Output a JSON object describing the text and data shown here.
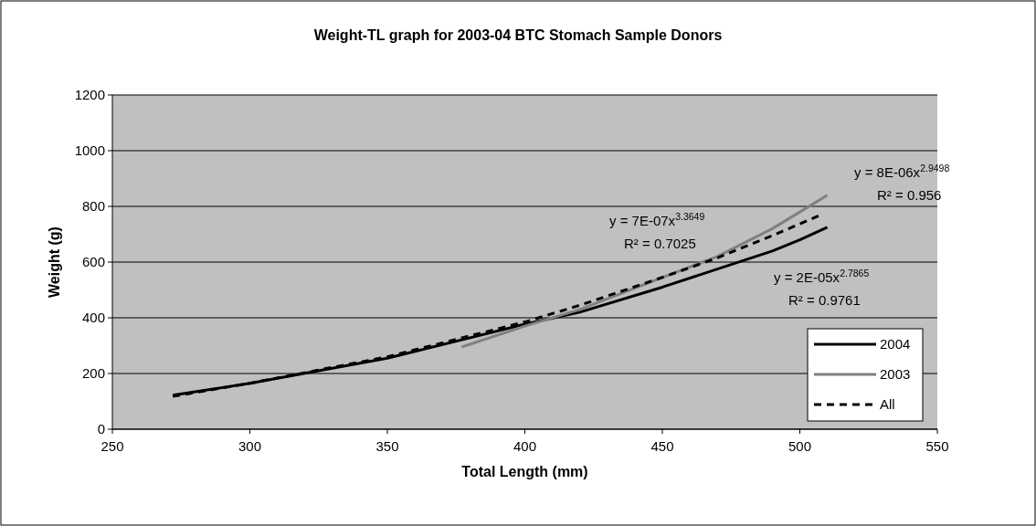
{
  "chart_data": {
    "type": "line",
    "title": "Weight-TL graph for 2003-04 BTC Stomach Sample Donors",
    "xlabel": "Total Length (mm)",
    "ylabel": "Weight (g)",
    "xlim": [
      250,
      550
    ],
    "xticks": [
      250,
      300,
      350,
      400,
      450,
      500,
      550
    ],
    "ylim": [
      0,
      1200
    ],
    "yticks": [
      0,
      200,
      400,
      600,
      800,
      1000,
      1200
    ],
    "grid": "y",
    "legend": "bottom right",
    "series": [
      {
        "name": "2004",
        "color": "#000000",
        "line_style": "solid",
        "x": [
          272,
          300,
          350,
          400,
          420,
          450,
          470,
          490,
          500,
          510
        ],
        "values": [
          122,
          165,
          255,
          377,
          420,
          510,
          575,
          640,
          680,
          725
        ]
      },
      {
        "name": "2003",
        "color": "#808080",
        "line_style": "solid",
        "x": [
          377,
          400,
          420,
          450,
          470,
          490,
          500,
          510
        ],
        "values": [
          295,
          370,
          430,
          545,
          620,
          720,
          780,
          840
        ]
      },
      {
        "name": "All",
        "color": "#000000",
        "line_style": "dashed",
        "x": [
          272,
          300,
          350,
          400,
          420,
          450,
          470,
          490,
          508
        ],
        "values": [
          118,
          165,
          260,
          385,
          445,
          545,
          615,
          695,
          771
        ]
      }
    ],
    "annotations": [
      "y = 7E-07x$^{3.3649}$",
      "R² = 0.7025",
      "y = 2E-05x$^{2.7865}$",
      "R² = 0.9761",
      "y = 8E-06x$^{2.9498}$",
      "R² = 0.956"
    ]
  }
}
